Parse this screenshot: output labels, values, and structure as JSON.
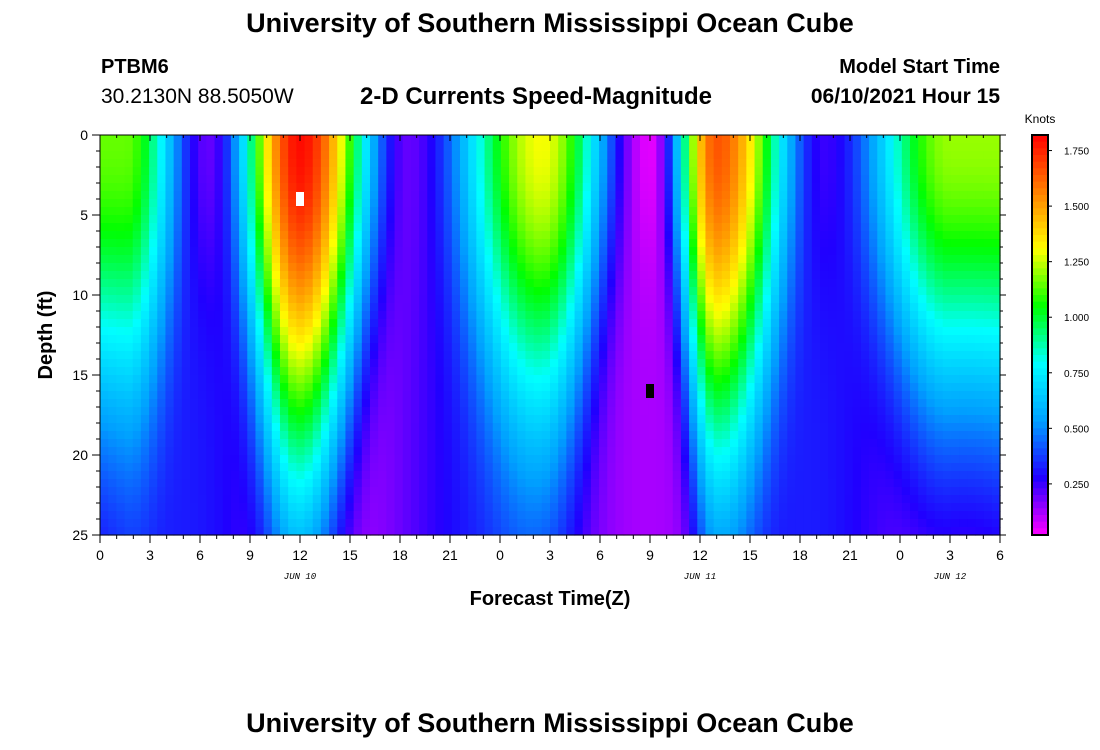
{
  "header": {
    "title": "University of Southern Mississippi Ocean Cube",
    "station_id": "PTBM6",
    "station_coords": "30.2130N  88.5050W",
    "chart_title": "2-D Currents Speed-Magnitude",
    "model_start_label": "Model Start Time",
    "model_start_value": "06/10/2021 Hour 15"
  },
  "footer": {
    "title": "University of Southern Mississippi Ocean Cube"
  },
  "chart_data": {
    "type": "heatmap",
    "title": "2-D Currents Speed-Magnitude",
    "xlabel": "Forecast Time(Z)",
    "ylabel": "Depth (ft)",
    "x_range_hours": [
      0,
      54
    ],
    "y_range": [
      0,
      25
    ],
    "x_ticks": [
      "0",
      "3",
      "6",
      "9",
      "12",
      "15",
      "18",
      "21",
      "0",
      "3",
      "6",
      "9",
      "12",
      "15",
      "18",
      "21",
      "0",
      "3",
      "6"
    ],
    "x_tick_hours": [
      0,
      3,
      6,
      9,
      12,
      15,
      18,
      21,
      24,
      27,
      30,
      33,
      36,
      39,
      42,
      45,
      48,
      51,
      54
    ],
    "y_ticks": [
      0,
      5,
      10,
      15,
      20,
      25
    ],
    "y_tick_labels": [
      "0",
      "5",
      "10",
      "15",
      "20",
      "25"
    ],
    "date_labels": [
      {
        "label": "JUN 10",
        "hour": 12
      },
      {
        "label": "JUN 11",
        "hour": 36
      },
      {
        "label": "JUN 12",
        "hour": 51
      }
    ],
    "colorbar": {
      "title": "Knots",
      "range": [
        0.02,
        1.82
      ],
      "ticks": [
        0.25,
        0.5,
        0.75,
        1.0,
        1.25,
        1.5,
        1.75
      ],
      "tick_labels": [
        "0.250",
        "0.500",
        "0.750",
        "1.000",
        "1.250",
        "1.500",
        "1.750"
      ],
      "colors": [
        "#ff00ff",
        "#2000ff",
        "#00a0ff",
        "#00ffff",
        "#00ff00",
        "#ffff00",
        "#ff8000",
        "#ff0000"
      ]
    },
    "speed_peaks_knots": [
      {
        "hour": 1.5,
        "surface": 1.15
      },
      {
        "hour": 6.5,
        "surface": 0.2
      },
      {
        "hour": 12,
        "surface": 1.8
      },
      {
        "hour": 18.5,
        "surface": 0.2
      },
      {
        "hour": 26.5,
        "surface": 1.3
      },
      {
        "hour": 33,
        "surface": 0.05
      },
      {
        "hour": 37,
        "surface": 1.65
      },
      {
        "hour": 43.5,
        "surface": 0.25
      },
      {
        "hour": 51,
        "surface": 1.2
      }
    ],
    "markers": [
      {
        "hour": 12,
        "depth": 4,
        "color": "#ffffff"
      },
      {
        "hour": 33,
        "depth": 16,
        "color": "#000000"
      }
    ]
  }
}
